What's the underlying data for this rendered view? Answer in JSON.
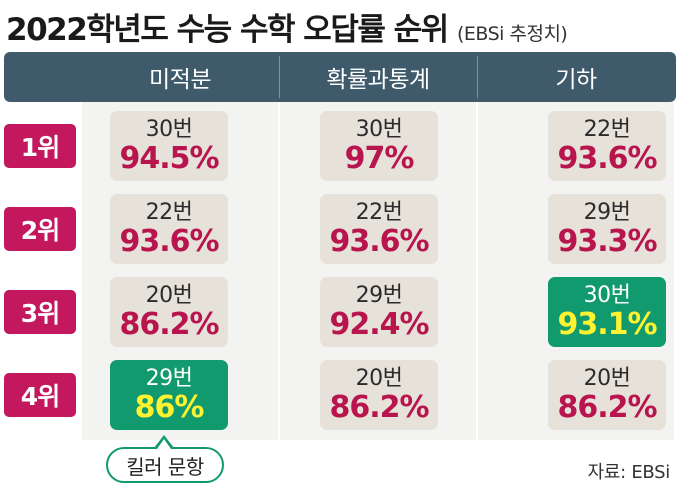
{
  "title": {
    "main": "2022학년도 수능 수학 오답률 순위",
    "sub": "(EBSi 추정치)"
  },
  "columns": [
    "미적분",
    "확률과통계",
    "기하"
  ],
  "ranks": [
    "1위",
    "2위",
    "3위",
    "4위"
  ],
  "cells": [
    [
      {
        "num": "30번",
        "pct": "94.5%"
      },
      {
        "num": "30번",
        "pct": "97%"
      },
      {
        "num": "22번",
        "pct": "93.6%"
      }
    ],
    [
      {
        "num": "22번",
        "pct": "93.6%"
      },
      {
        "num": "22번",
        "pct": "93.6%"
      },
      {
        "num": "29번",
        "pct": "93.3%"
      }
    ],
    [
      {
        "num": "20번",
        "pct": "86.2%"
      },
      {
        "num": "29번",
        "pct": "92.4%"
      },
      {
        "num": "30번",
        "pct": "93.1%"
      }
    ],
    [
      {
        "num": "29번",
        "pct": "86%"
      },
      {
        "num": "20번",
        "pct": "86.2%"
      },
      {
        "num": "20번",
        "pct": "86.2%"
      }
    ]
  ],
  "highlight_color": "#129a6f",
  "rank_color": "#c3185d",
  "header_color": "#3e5a6b",
  "callout": "킬러 문항",
  "source": "자료: EBSi"
}
